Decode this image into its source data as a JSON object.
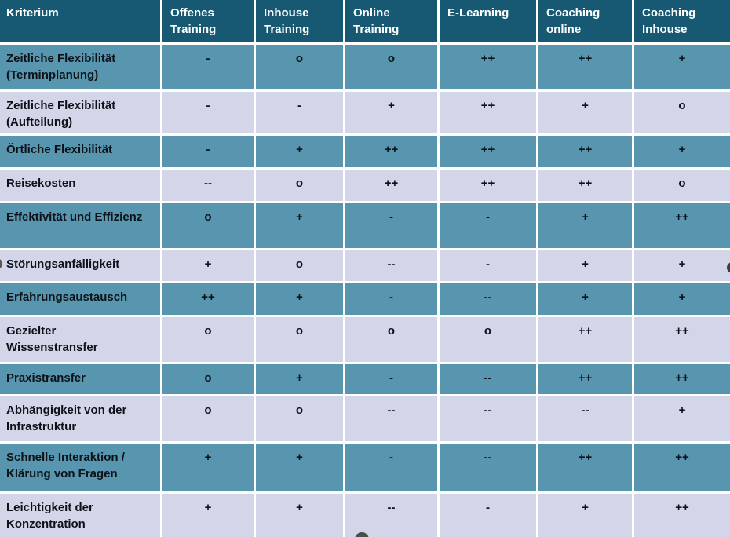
{
  "table": {
    "header": [
      "Kriterium",
      "Offenes Training",
      "Inhouse Training",
      "Online Training",
      "E-Learning",
      "Coaching online",
      "Coaching Inhouse"
    ],
    "rows": [
      {
        "label": "Zeitliche Flexibilität (Terminplanung)",
        "values": [
          "-",
          "o",
          "o",
          "++",
          "++",
          "+"
        ]
      },
      {
        "label": "Zeitliche Flexibilität (Aufteilung)",
        "values": [
          "-",
          "-",
          "+",
          "++",
          "+",
          "o"
        ]
      },
      {
        "label": "Örtliche Flexibilität",
        "values": [
          "-",
          "+",
          "++",
          "++",
          "++",
          "+"
        ]
      },
      {
        "label": "Reisekosten",
        "values": [
          "--",
          "o",
          "++",
          "++",
          "++",
          "o"
        ]
      },
      {
        "label": "Effektivität und Effizienz",
        "values": [
          "o",
          "+",
          "-",
          "-",
          "+",
          "++"
        ]
      },
      {
        "label": "Störungsanfälligkeit",
        "values": [
          "+",
          "o",
          "--",
          "-",
          "+",
          "+"
        ]
      },
      {
        "label": "Erfahrungsaustausch",
        "values": [
          "++",
          "+",
          "-",
          "--",
          "+",
          "+"
        ]
      },
      {
        "label": "Gezielter Wissenstransfer",
        "values": [
          "o",
          "o",
          "o",
          "o",
          "++",
          "++"
        ]
      },
      {
        "label": "Praxistransfer",
        "values": [
          "o",
          "+",
          "-",
          "--",
          "++",
          "++"
        ]
      },
      {
        "label": "Abhängigkeit von der Infrastruktur",
        "values": [
          "o",
          "o",
          "--",
          "--",
          "--",
          "+"
        ]
      },
      {
        "label": "Schnelle Interaktion / Klärung von Fragen",
        "values": [
          "+",
          "+",
          "-",
          "--",
          "++",
          "++"
        ]
      },
      {
        "label": "Leichtigkeit der Konzentration",
        "values": [
          "+",
          "+",
          "--",
          "-",
          "+",
          "++"
        ]
      }
    ]
  },
  "colors": {
    "header_bg": "#175873",
    "header_text": "#FFFFFF",
    "teal_row": "#5896AF",
    "light_row": "#D3D6E8",
    "grid_line": "#FFFFFF",
    "body_text": "#0D1218"
  }
}
